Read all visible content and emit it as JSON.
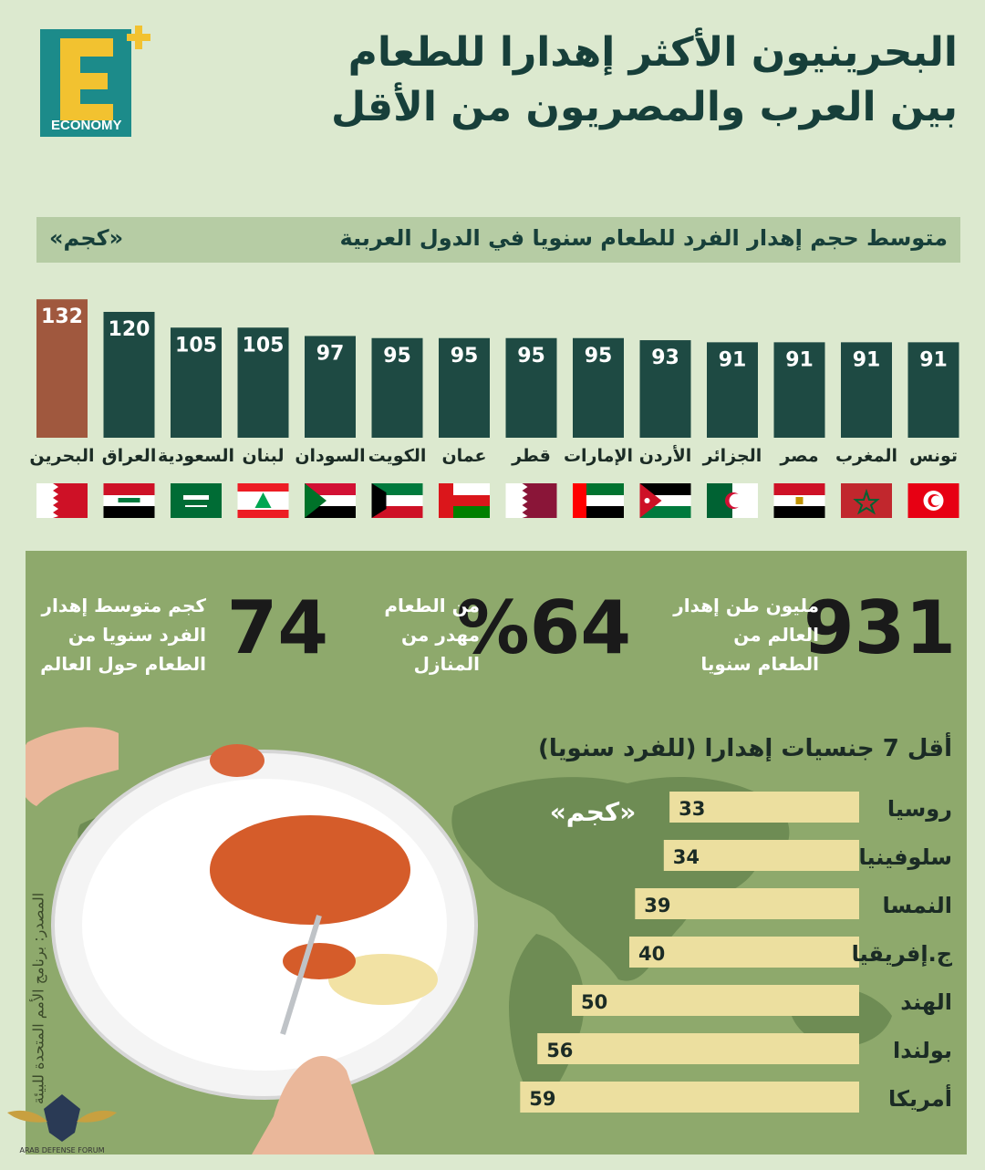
{
  "logo": {
    "text": "ECONOMY",
    "colors": {
      "teal": "#1c8b8a",
      "yellow": "#f2c230"
    }
  },
  "title": {
    "line1": "البحرينيون الأكثر إهدارا  للطعام",
    "line2": "بين العرب والمصريون من الأقل"
  },
  "arab_chart_header": {
    "title": "متوسط حجم إهدار الفرد للطعام سنويا في الدول العربية",
    "unit": "«كجم»"
  },
  "colors": {
    "bar": "#1e4a43",
    "highlight": "#a0583e",
    "light_bar": "#ecdf9f",
    "panel": "#8ea96c"
  },
  "chart_data": [
    {
      "type": "bar",
      "title": "متوسط حجم إهدار الفرد للطعام سنويا في الدول العربية",
      "unit": "«كجم»",
      "categories": [
        "البحرين",
        "العراق",
        "السعودية",
        "لبنان",
        "السودان",
        "الكويت",
        "عمان",
        "قطر",
        "الإمارات",
        "الأردن",
        "الجزائر",
        "مصر",
        "المغرب",
        "تونس"
      ],
      "values": [
        132,
        120,
        105,
        105,
        97,
        95,
        95,
        95,
        95,
        93,
        91,
        91,
        91,
        91
      ],
      "highlight_index": 0
    },
    {
      "type": "bar",
      "orientation": "horizontal",
      "title": "أقل 7 جنسيات إهدارا (للفرد سنويا)",
      "unit": "«كجم»",
      "categories": [
        "روسيا",
        "سلوفينيا",
        "النمسا",
        "ج.إفريقيا",
        "الهند",
        "بولندا",
        "أمريكا"
      ],
      "values": [
        33,
        34,
        39,
        40,
        50,
        56,
        59
      ]
    }
  ],
  "flags": [
    "bahrain-flag",
    "iraq-flag",
    "saudi-flag",
    "lebanon-flag",
    "sudan-flag",
    "kuwait-flag",
    "oman-flag",
    "qatar-flag",
    "uae-flag",
    "jordan-flag",
    "algeria-flag",
    "egypt-flag",
    "morocco-flag",
    "tunisia-flag"
  ],
  "stats": [
    {
      "number": "931",
      "text": "مليون طن إهدار العالم من الطعام سنويا"
    },
    {
      "number": "%64",
      "text": "من الطعام مهدر من المنازل"
    },
    {
      "number": "74",
      "text": "كجم متوسط إهدار الفرد سنويا من الطعام حول العالم"
    }
  ],
  "lowest_title": "أقل 7 جنسيات إهدارا (للفرد سنويا)",
  "lowest_unit": "«كجم»",
  "source": "المصدر: برنامج الأمم المتحدة للبيئة",
  "watermark": {
    "text": "ARAB DEFENSE FORUM"
  }
}
